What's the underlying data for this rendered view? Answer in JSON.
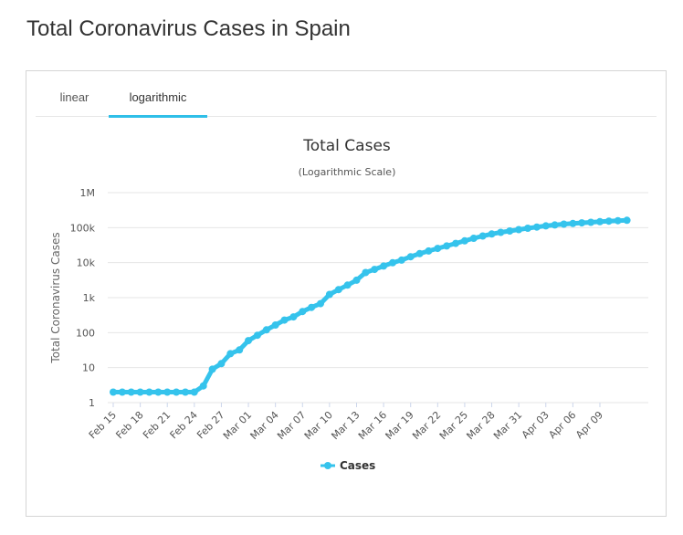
{
  "page": {
    "title": "Total Coronavirus Cases in Spain"
  },
  "tabs": [
    {
      "label": "linear",
      "active": false
    },
    {
      "label": "logarithmic",
      "active": true
    }
  ],
  "colors": {
    "series": "#35c3ec",
    "tab_underline": "#2fbfe8",
    "grid": "#e6e6e6"
  },
  "chart_data": {
    "type": "line",
    "title": "Total Cases",
    "subtitle": "(Logarithmic Scale)",
    "ylabel": "Total Coronavirus Cases",
    "xlabel": "",
    "y_scale": "log",
    "ylim": [
      1,
      1000000
    ],
    "y_ticks": [
      "1",
      "10",
      "100",
      "1k",
      "10k",
      "100k",
      "1M"
    ],
    "x_ticks": [
      "Feb 15",
      "Feb 18",
      "Feb 21",
      "Feb 24",
      "Feb 27",
      "Mar 01",
      "Mar 04",
      "Mar 07",
      "Mar 10",
      "Mar 13",
      "Mar 16",
      "Mar 19",
      "Mar 22",
      "Mar 25",
      "Mar 28",
      "Mar 31",
      "Apr 03",
      "Apr 06",
      "Apr 09"
    ],
    "legend": {
      "position": "bottom-center"
    },
    "grid": true,
    "series": [
      {
        "name": "Cases",
        "x": [
          "Feb 15",
          "Feb 16",
          "Feb 17",
          "Feb 18",
          "Feb 19",
          "Feb 20",
          "Feb 21",
          "Feb 22",
          "Feb 23",
          "Feb 24",
          "Feb 25",
          "Feb 26",
          "Feb 27",
          "Feb 28",
          "Feb 29",
          "Mar 01",
          "Mar 02",
          "Mar 03",
          "Mar 04",
          "Mar 05",
          "Mar 06",
          "Mar 07",
          "Mar 08",
          "Mar 09",
          "Mar 10",
          "Mar 11",
          "Mar 12",
          "Mar 13",
          "Mar 14",
          "Mar 15",
          "Mar 16",
          "Mar 17",
          "Mar 18",
          "Mar 19",
          "Mar 20",
          "Mar 21",
          "Mar 22",
          "Mar 23",
          "Mar 24",
          "Mar 25",
          "Mar 26",
          "Mar 27",
          "Mar 28",
          "Mar 29",
          "Mar 30",
          "Mar 31",
          "Apr 01",
          "Apr 02",
          "Apr 03",
          "Apr 04",
          "Apr 05",
          "Apr 06",
          "Apr 07",
          "Apr 08",
          "Apr 09",
          "Apr 10",
          "Apr 11",
          "Apr 12"
        ],
        "values": [
          2,
          2,
          2,
          2,
          2,
          2,
          2,
          2,
          2,
          2,
          3,
          9,
          13,
          25,
          32,
          59,
          84,
          120,
          165,
          228,
          282,
          401,
          525,
          674,
          1231,
          1695,
          2277,
          3146,
          5232,
          6391,
          7988,
          9942,
          11826,
          14769,
          18077,
          21571,
          25496,
          29909,
          35480,
          42058,
          49515,
          57786,
          65719,
          73235,
          80110,
          87956,
          95923,
          104118,
          112065,
          119199,
          126168,
          131646,
          136675,
          141942,
          148220,
          153222,
          158273,
          161852
        ]
      }
    ]
  }
}
